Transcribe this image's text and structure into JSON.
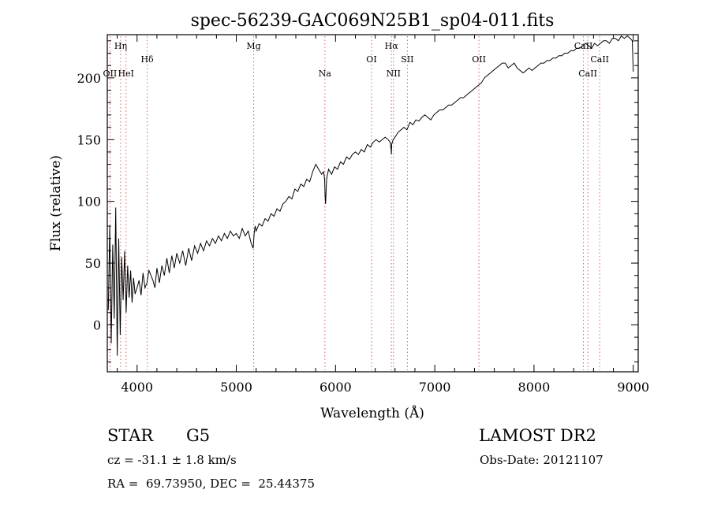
{
  "chart_data": {
    "type": "line",
    "title": "spec-56239-GAC069N25B1_sp04-011.fits",
    "xlabel": "Wavelength (Å)",
    "ylabel": "Flux (relative)",
    "xlim": [
      3700,
      9050
    ],
    "ylim": [
      -38,
      235
    ],
    "xticks": [
      4000,
      5000,
      6000,
      7000,
      8000,
      9000
    ],
    "yticks": [
      0,
      50,
      100,
      150,
      200
    ],
    "grid": false,
    "series": [
      {
        "x": [
          3710,
          3725,
          3740,
          3755,
          3770,
          3785,
          3800,
          3815,
          3830,
          3845,
          3860,
          3875,
          3890,
          3905,
          3920,
          3935,
          3950,
          3965,
          3980,
          4000,
          4020,
          4040,
          4060,
          4080,
          4100,
          4120,
          4140,
          4160,
          4180,
          4200,
          4225,
          4250,
          4275,
          4300,
          4325,
          4350,
          4375,
          4400,
          4430,
          4460,
          4490,
          4520,
          4550,
          4580,
          4610,
          4640,
          4670,
          4700,
          4730,
          4760,
          4790,
          4820,
          4850,
          4880,
          4910,
          4940,
          4970,
          5000,
          5030,
          5060,
          5090,
          5120,
          5150,
          5170,
          5180,
          5190,
          5200,
          5230,
          5260,
          5290,
          5320,
          5350,
          5380,
          5410,
          5440,
          5470,
          5500,
          5530,
          5560,
          5590,
          5620,
          5650,
          5680,
          5710,
          5740,
          5770,
          5800,
          5830,
          5860,
          5880,
          5890,
          5895,
          5900,
          5910,
          5930,
          5960,
          5990,
          6020,
          6050,
          6080,
          6110,
          6140,
          6170,
          6200,
          6230,
          6260,
          6290,
          6320,
          6350,
          6380,
          6410,
          6440,
          6470,
          6500,
          6530,
          6550,
          6560,
          6563,
          6566,
          6580,
          6600,
          6630,
          6660,
          6690,
          6720,
          6750,
          6780,
          6810,
          6840,
          6870,
          6900,
          6930,
          6960,
          6990,
          7020,
          7050,
          7080,
          7110,
          7140,
          7170,
          7200,
          7230,
          7260,
          7290,
          7320,
          7350,
          7380,
          7410,
          7440,
          7470,
          7500,
          7530,
          7560,
          7590,
          7620,
          7650,
          7680,
          7710,
          7740,
          7770,
          7800,
          7830,
          7860,
          7890,
          7920,
          7950,
          7980,
          8010,
          8040,
          8070,
          8100,
          8130,
          8160,
          8190,
          8220,
          8250,
          8280,
          8310,
          8340,
          8370,
          8400,
          8430,
          8460,
          8490,
          8520,
          8550,
          8580,
          8610,
          8640,
          8670,
          8700,
          8730,
          8760,
          8790,
          8820,
          8850,
          8880,
          8910,
          8940,
          8970,
          8990,
          9000
        ],
        "y": [
          12,
          80,
          -15,
          65,
          5,
          95,
          -25,
          70,
          -8,
          55,
          20,
          60,
          10,
          48,
          22,
          44,
          18,
          38,
          25,
          30,
          36,
          24,
          42,
          30,
          34,
          44,
          40,
          36,
          30,
          46,
          34,
          48,
          40,
          54,
          42,
          56,
          46,
          58,
          50,
          60,
          48,
          62,
          52,
          64,
          58,
          66,
          60,
          68,
          64,
          70,
          66,
          72,
          68,
          74,
          70,
          76,
          72,
          74,
          70,
          78,
          72,
          76,
          66,
          62,
          74,
          80,
          76,
          82,
          80,
          86,
          84,
          90,
          88,
          94,
          92,
          98,
          100,
          104,
          102,
          110,
          108,
          114,
          112,
          118,
          116,
          124,
          130,
          126,
          122,
          124,
          118,
          104,
          98,
          118,
          126,
          122,
          128,
          126,
          132,
          130,
          136,
          134,
          138,
          140,
          138,
          142,
          140,
          146,
          144,
          148,
          150,
          148,
          150,
          152,
          150,
          148,
          142,
          138,
          146,
          150,
          152,
          156,
          158,
          160,
          158,
          164,
          162,
          166,
          165,
          168,
          170,
          168,
          166,
          170,
          172,
          174,
          174,
          176,
          178,
          178,
          180,
          182,
          184,
          184,
          186,
          188,
          190,
          192,
          194,
          196,
          200,
          202,
          204,
          206,
          208,
          210,
          212,
          212,
          208,
          210,
          212,
          208,
          206,
          204,
          206,
          208,
          206,
          208,
          210,
          212,
          212,
          214,
          214,
          216,
          216,
          218,
          218,
          220,
          220,
          222,
          222,
          224,
          224,
          226,
          228,
          226,
          224,
          228,
          226,
          228,
          230,
          230,
          228,
          232,
          232,
          230,
          234,
          232,
          234,
          232,
          230,
          205
        ]
      }
    ],
    "lines": [
      {
        "label": "Hη",
        "x": 3835,
        "row": 1
      },
      {
        "label": "OII",
        "x": 3727,
        "row": 3
      },
      {
        "label": "HeI",
        "x": 3889,
        "row": 3
      },
      {
        "label": "Hδ",
        "x": 4102,
        "row": 2
      },
      {
        "label": "Mg",
        "x": 5175,
        "row": 1
      },
      {
        "label": "Na",
        "x": 5893,
        "row": 3
      },
      {
        "label": "OI",
        "x": 6363,
        "row": 2
      },
      {
        "label": "Hα",
        "x": 6563,
        "row": 1
      },
      {
        "label": "NII",
        "x": 6584,
        "row": 3
      },
      {
        "label": "SII",
        "x": 6724,
        "row": 2
      },
      {
        "label": "OII",
        "x": 7445,
        "row": 2
      },
      {
        "label": "CaII",
        "x": 8498,
        "row": 1
      },
      {
        "label": "CaII",
        "x": 8542,
        "row": 3
      },
      {
        "label": "CaII",
        "x": 8662,
        "row": 2
      }
    ],
    "colors": {
      "spectrum": "#000000",
      "line_markers": "#e06060",
      "axes": "#000000"
    }
  },
  "info": {
    "object_class": "STAR",
    "subclass": "G5",
    "survey": "LAMOST DR2",
    "velocity": "cz = -31.1 ± 1.8 km/s",
    "obs_date": "Obs-Date: 20121107",
    "coords": "RA =  69.73950, DEC =  25.44375"
  }
}
